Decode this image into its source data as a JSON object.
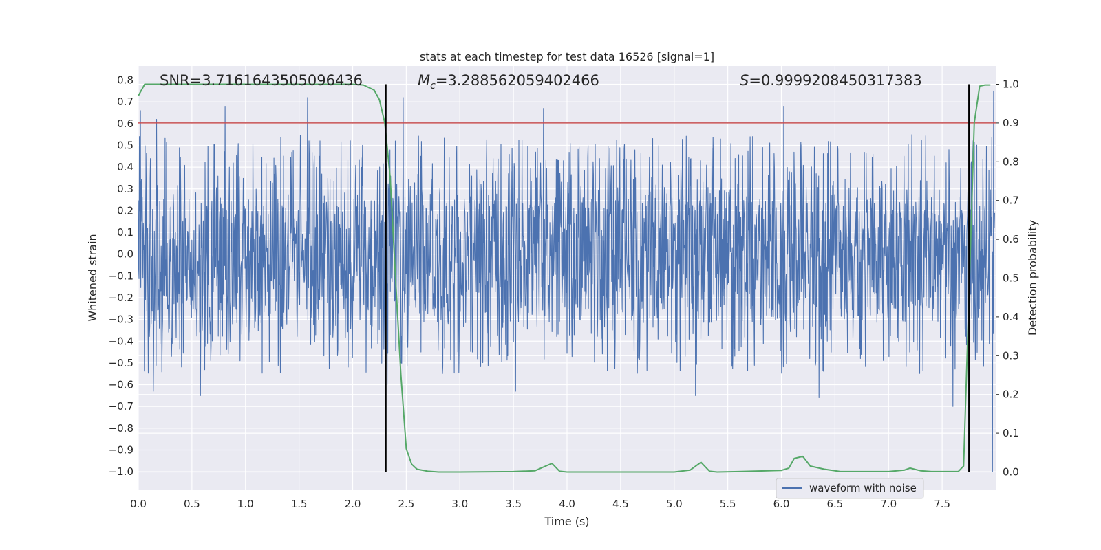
{
  "chart_data": {
    "type": "line",
    "title": "stats at each timestep for test data 16526 [signal=1]",
    "xlabel": "Time (s)",
    "ylabel": "Whitened strain",
    "y2label": "Detection probability",
    "xlim": [
      0.0,
      8.0
    ],
    "ylim": [
      -1.085,
      0.865
    ],
    "y2lim": [
      -0.047,
      1.047
    ],
    "xticks": [
      0.0,
      0.5,
      1.0,
      1.5,
      2.0,
      2.5,
      3.0,
      3.5,
      4.0,
      4.5,
      5.0,
      5.5,
      6.0,
      6.5,
      7.0,
      7.5
    ],
    "xtick_labels": [
      "0.0",
      "0.5",
      "1.0",
      "1.5",
      "2.0",
      "2.5",
      "3.0",
      "3.5",
      "4.0",
      "4.5",
      "5.0",
      "5.5",
      "6.0",
      "6.5",
      "7.0",
      "7.5"
    ],
    "yticks": [
      0.8,
      0.7,
      0.6,
      0.5,
      0.4,
      0.3,
      0.2,
      0.1,
      0.0,
      -0.1,
      -0.2,
      -0.3,
      -0.4,
      -0.5,
      -0.6,
      -0.7,
      -0.8,
      -0.9,
      -1.0
    ],
    "ytick_labels": [
      "0.8",
      "0.7",
      "0.6",
      "0.5",
      "0.4",
      "0.3",
      "0.2",
      "0.1",
      "0.0",
      "−0.1",
      "−0.2",
      "−0.3",
      "−0.4",
      "−0.5",
      "−0.6",
      "−0.7",
      "−0.8",
      "−0.9",
      "−1.0"
    ],
    "y2ticks": [
      1.0,
      0.9,
      0.8,
      0.7,
      0.6,
      0.5,
      0.4,
      0.3,
      0.2,
      0.1,
      0.0
    ],
    "y2tick_labels": [
      "1.0",
      "0.9",
      "0.8",
      "0.7",
      "0.6",
      "0.5",
      "0.4",
      "0.3",
      "0.2",
      "0.1",
      "0.0"
    ],
    "grid": true,
    "legend": {
      "position": "lower-right",
      "entries": [
        "waveform with noise"
      ]
    },
    "annotations": {
      "snr": "SNR=3.7161643505096436",
      "mc_symbol": "M",
      "mc_subscript": "c",
      "mc_value": "=3.288562059402466",
      "s_symbol": "S",
      "s_value": "=0.9999208450317383"
    },
    "waveform": {
      "name": "waveform with noise",
      "color": "#4c72b0",
      "x_range": [
        0.0,
        7.99
      ],
      "envelope_upper": 0.22,
      "envelope_lower": -0.25,
      "typical_peak_max": 0.55,
      "typical_peak_min": -0.55,
      "extreme_max": 0.75,
      "extreme_min": -1.0,
      "notable_spikes": [
        {
          "x": 0.02,
          "y": 0.66
        },
        {
          "x": 0.17,
          "y": 0.62
        },
        {
          "x": 0.14,
          "y": -0.63
        },
        {
          "x": 0.81,
          "y": 0.68
        },
        {
          "x": 0.58,
          "y": -0.65
        },
        {
          "x": 1.58,
          "y": 0.72
        },
        {
          "x": 2.47,
          "y": 0.72
        },
        {
          "x": 2.32,
          "y": -0.6
        },
        {
          "x": 3.52,
          "y": -0.63
        },
        {
          "x": 3.78,
          "y": 0.67
        },
        {
          "x": 5.2,
          "y": -0.65
        },
        {
          "x": 6.02,
          "y": 0.68
        },
        {
          "x": 6.35,
          "y": -0.66
        },
        {
          "x": 7.6,
          "y": -0.7
        },
        {
          "x": 7.98,
          "y": 0.75
        },
        {
          "x": 7.97,
          "y": -1.0
        }
      ]
    },
    "detection_probability": {
      "color": "#55a868",
      "x": [
        0.0,
        0.06,
        0.5,
        1.0,
        1.5,
        2.0,
        2.1,
        2.2,
        2.25,
        2.3,
        2.35,
        2.4,
        2.45,
        2.5,
        2.55,
        2.6,
        2.7,
        2.8,
        3.0,
        3.5,
        3.7,
        3.8,
        3.86,
        3.93,
        4.0,
        5.0,
        5.15,
        5.25,
        5.33,
        5.4,
        5.6,
        6.0,
        6.07,
        6.12,
        6.2,
        6.27,
        6.4,
        6.55,
        7.0,
        7.15,
        7.2,
        7.3,
        7.4,
        7.65,
        7.7,
        7.75,
        7.8,
        7.85,
        7.9,
        7.95
      ],
      "y": [
        0.97,
        1.0,
        1.0,
        1.0,
        1.0,
        1.0,
        0.998,
        0.985,
        0.96,
        0.9,
        0.76,
        0.5,
        0.25,
        0.06,
        0.02,
        0.007,
        0.002,
        0.0,
        0.0,
        0.001,
        0.003,
        0.015,
        0.022,
        0.002,
        0.0,
        0.0,
        0.005,
        0.025,
        0.002,
        0.0,
        0.001,
        0.004,
        0.01,
        0.035,
        0.04,
        0.015,
        0.007,
        0.001,
        0.001,
        0.005,
        0.01,
        0.003,
        0.001,
        0.001,
        0.015,
        0.45,
        0.9,
        0.995,
        0.998,
        0.998
      ]
    },
    "threshold_line": {
      "value": 0.9,
      "axis": "y2",
      "color": "#c44e52"
    },
    "vertical_markers": {
      "x": [
        2.31,
        7.75
      ],
      "y2_range": [
        0.0,
        1.0
      ],
      "color": "#000000"
    }
  }
}
